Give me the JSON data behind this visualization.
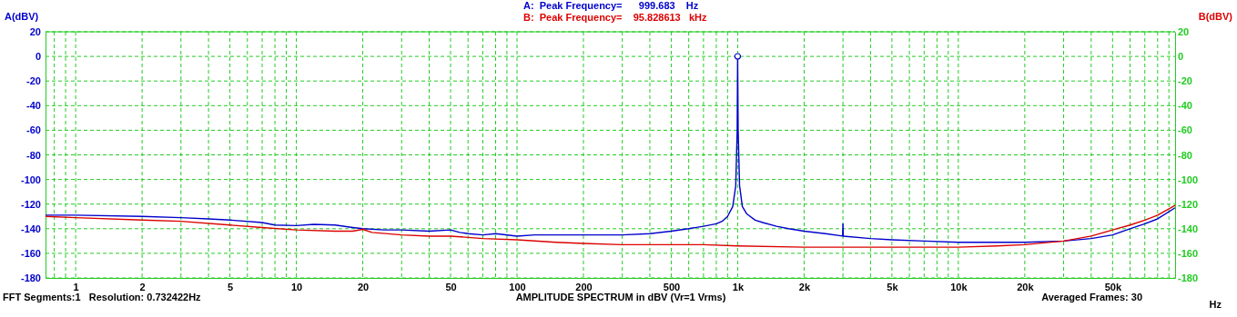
{
  "chart_data": {
    "type": "line",
    "xlabel": "AMPLITUDE SPECTRUM in dBV (Vr=1 Vrms)",
    "ylabel": "A(dBV)",
    "y2label": "B(dBV)",
    "annotations": [
      "A:  Peak Frequency=      999.683    Hz",
      "B:  Peak Frequency=    95.828613   kHz",
      "FFT Segments:1   Resolution: 0.732422Hz",
      "Averaged Frames: 30",
      "Hz"
    ],
    "log": "x",
    "grid": true,
    "line_style": "solid",
    "marker": "none",
    "xlim": [
      0.73,
      96000
    ],
    "xticks": [
      {
        "value": 0.8,
        "label": null
      },
      {
        "value": 0.9,
        "label": null
      },
      1,
      2,
      {
        "value": 3,
        "label": null
      },
      {
        "value": 4,
        "label": null
      },
      5,
      {
        "value": 6,
        "label": null
      },
      {
        "value": 7,
        "label": null
      },
      {
        "value": 8,
        "label": null
      },
      {
        "value": 9,
        "label": null
      },
      10,
      20,
      {
        "value": 30,
        "label": null
      },
      {
        "value": 40,
        "label": null
      },
      50,
      {
        "value": 60,
        "label": null
      },
      {
        "value": 70,
        "label": null
      },
      {
        "value": 80,
        "label": null
      },
      {
        "value": 90,
        "label": null
      },
      100,
      200,
      {
        "value": 300,
        "label": null
      },
      {
        "value": 400,
        "label": null
      },
      500,
      {
        "value": 600,
        "label": null
      },
      {
        "value": 700,
        "label": null
      },
      {
        "value": 800,
        "label": null
      },
      {
        "value": 900,
        "label": null
      },
      {
        "value": 1000,
        "label": "1k"
      },
      {
        "value": 2000,
        "label": "2k"
      },
      {
        "value": 3000,
        "label": null
      },
      {
        "value": 4000,
        "label": null
      },
      {
        "value": 5000,
        "label": "5k"
      },
      {
        "value": 6000,
        "label": null
      },
      {
        "value": 7000,
        "label": null
      },
      {
        "value": 8000,
        "label": null
      },
      {
        "value": 9000,
        "label": null
      },
      {
        "value": 10000,
        "label": "10k"
      },
      {
        "value": 20000,
        "label": "20k"
      },
      {
        "value": 30000,
        "label": null
      },
      {
        "value": 40000,
        "label": null
      },
      {
        "value": 50000,
        "label": "50k"
      },
      {
        "value": 60000,
        "label": null
      },
      {
        "value": 70000,
        "label": null
      },
      {
        "value": 80000,
        "label": null
      },
      {
        "value": 90000,
        "label": null
      }
    ],
    "ylim": [
      -180,
      20
    ],
    "yticks": [
      -180,
      -160,
      -140,
      -120,
      -100,
      -80,
      -60,
      -40,
      -20,
      0,
      20
    ],
    "y2lim": [
      -180,
      20
    ],
    "y2ticks": [
      -180,
      -160,
      -140,
      -120,
      -100,
      -80,
      -60,
      -40,
      -20,
      0,
      20
    ],
    "series": [
      {
        "color": "#0000cc",
        "x": [
          0.73,
          1,
          2,
          3,
          4,
          5,
          7,
          8,
          10,
          12,
          15,
          18,
          20,
          25,
          30,
          40,
          50,
          55,
          60,
          70,
          80,
          100,
          120,
          150,
          200,
          300,
          400,
          500,
          600,
          700,
          800,
          850,
          900,
          950,
          980,
          995,
          999.683,
          1005,
          1020,
          1050,
          1100,
          1200,
          1300,
          1500,
          1700,
          2000,
          2500,
          2990,
          3000,
          3010,
          4000,
          5000,
          7000,
          10000,
          15000,
          20000,
          30000,
          40000,
          50000,
          60000,
          70000,
          80000,
          96000
        ],
        "values": [
          -129,
          -129,
          -130,
          -131,
          -132,
          -133,
          -135,
          -137,
          -137.5,
          -136.5,
          -137,
          -139,
          -140,
          -141,
          -141,
          -142,
          -141,
          -143,
          -144,
          -145,
          -144,
          -146,
          -145,
          -145,
          -145,
          -145,
          -144,
          -142,
          -140,
          -138,
          -136,
          -134,
          -130,
          -122,
          -105,
          -60,
          0,
          -60,
          -105,
          -122,
          -128,
          -133,
          -135,
          -138,
          -140,
          -142,
          -144,
          -146,
          -136,
          -146,
          -148,
          -149,
          -150,
          -151,
          -151,
          -151,
          -150,
          -148,
          -145,
          -140,
          -136,
          -132,
          -123
        ]
      },
      {
        "color": "#dd0000",
        "x": [
          0.73,
          1,
          2,
          3,
          5,
          7,
          10,
          15,
          18,
          20,
          22,
          30,
          40,
          50,
          70,
          100,
          150,
          200,
          300,
          500,
          700,
          1000,
          2000,
          3000,
          5000,
          7000,
          10000,
          15000,
          20000,
          30000,
          40000,
          50000,
          60000,
          70000,
          80000,
          96000
        ],
        "values": [
          -130,
          -131,
          -133,
          -134,
          -137,
          -139,
          -141,
          -142,
          -142,
          -140.5,
          -143,
          -145,
          -146,
          -146,
          -148,
          -149,
          -151,
          -152,
          -153,
          -153,
          -153,
          -154,
          -155,
          -155,
          -155,
          -155,
          -155,
          -154,
          -153,
          -150,
          -146,
          -141,
          -137,
          -133,
          -129,
          -121
        ]
      },
      {
        "type": "scatter",
        "color": "#0000cc",
        "marker": "circle",
        "x": [
          999.683
        ],
        "values": [
          0
        ]
      }
    ]
  }
}
